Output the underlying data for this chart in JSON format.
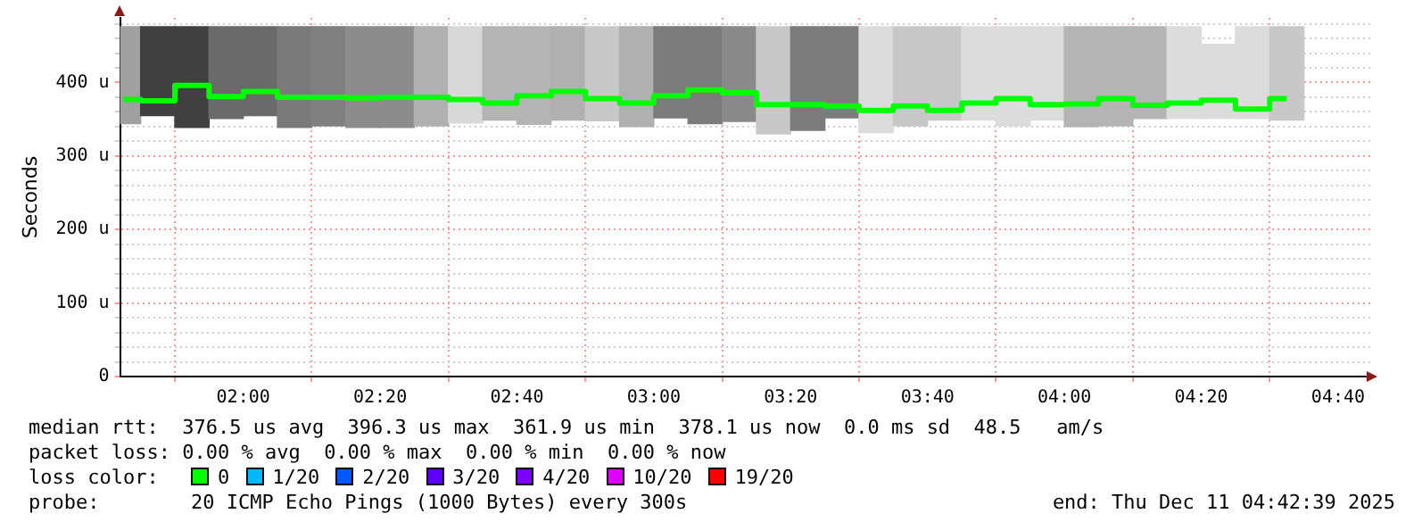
{
  "chart_data": {
    "type": "step",
    "ylabel": "Seconds",
    "x": [
      1.7083,
      1.7917,
      1.875,
      1.9583,
      2.0417,
      2.125,
      2.2083,
      2.2917,
      2.375,
      2.4583,
      2.5417,
      2.625,
      2.7083,
      2.7917,
      2.875,
      2.9583,
      3.0417,
      3.125,
      3.2083,
      3.2917,
      3.375,
      3.4583,
      3.5417,
      3.625,
      3.7083,
      3.7917,
      3.875,
      3.9583,
      4.0417,
      4.125,
      4.2083,
      4.2917,
      4.375,
      4.4583,
      4.5417
    ],
    "series": [
      {
        "type": "bar",
        "colors": [
          "#a0a0a0",
          "#404040",
          "#404040",
          "#6a6a6a",
          "#6a6a6a",
          "#7a7a7a",
          "#808080",
          "#8c8c8c",
          "#8c8c8c",
          "#b0b0b0",
          "#d8d8d8",
          "#b4b4b4",
          "#b4b4b4",
          "#b0b0b0",
          "#c8c8c8",
          "#b0b0b0",
          "#7c7c7c",
          "#7c7c7c",
          "#8a8a8a",
          "#c8c8c8",
          "#7c7c7c",
          "#7c7c7c",
          "#dcdcdc",
          "#c8c8c8",
          "#c8c8c8",
          "#dcdcdc",
          "#dcdcdc",
          "#dcdcdc",
          "#b4b4b4",
          "#b4b4b4",
          "#b4b4b4",
          "#dcdcdc",
          "#dcdcdc",
          "#dcdcdc",
          "#c8c8c8"
        ],
        "base": [
          344,
          355,
          339,
          351,
          355,
          339,
          341,
          339,
          339,
          341,
          345,
          349,
          343,
          349,
          348,
          340,
          352,
          344,
          347,
          330,
          335,
          352,
          332,
          341,
          349,
          349,
          341,
          349,
          340,
          341,
          351,
          351,
          351,
          351,
          349
        ],
        "values": [
          132,
          121,
          137,
          125,
          121,
          137,
          135,
          137,
          137,
          135,
          131,
          127,
          133,
          127,
          128,
          136,
          124,
          132,
          129,
          146,
          141,
          124,
          144,
          135,
          127,
          127,
          135,
          127,
          136,
          135,
          125,
          125,
          101,
          125,
          127
        ]
      },
      {
        "color": "#00ff00",
        "values": [
          377,
          375,
          396,
          381,
          388,
          380,
          380,
          379,
          380,
          380,
          377,
          372,
          382,
          388,
          378,
          372,
          382,
          390,
          386,
          370,
          370,
          368,
          362,
          368,
          362,
          372,
          378,
          370,
          371,
          378,
          369,
          372,
          376,
          364,
          378
        ]
      }
    ],
    "xlim": [
      1.7,
      4.745
    ],
    "xticks": [
      {
        "value": 2,
        "label": "02:00"
      },
      {
        "value": 2.3333,
        "label": "02:20"
      },
      {
        "value": 2.6667,
        "label": "02:40"
      },
      {
        "value": 3,
        "label": "03:00"
      },
      {
        "value": 3.3333,
        "label": "03:20"
      },
      {
        "value": 3.6667,
        "label": "03:40"
      },
      {
        "value": 4,
        "label": "04:00"
      },
      {
        "value": 4.3333,
        "label": "04:20"
      },
      {
        "value": 4.6667,
        "label": "04:40"
      }
    ],
    "ylim": [
      0,
      488
    ],
    "yticks": [
      0,
      {
        "value": 20,
        "label": null
      },
      {
        "value": 40,
        "label": null
      },
      {
        "value": 60,
        "label": null
      },
      {
        "value": 80,
        "label": null
      },
      {
        "value": 100,
        "label": "100 u"
      },
      {
        "value": 120,
        "label": null
      },
      {
        "value": 140,
        "label": null
      },
      {
        "value": 160,
        "label": null
      },
      {
        "value": 180,
        "label": null
      },
      {
        "value": 200,
        "label": "200 u"
      },
      {
        "value": 220,
        "label": null
      },
      {
        "value": 240,
        "label": null
      },
      {
        "value": 260,
        "label": null
      },
      {
        "value": 280,
        "label": null
      },
      {
        "value": 300,
        "label": "300 u"
      },
      {
        "value": 320,
        "label": null
      },
      {
        "value": 340,
        "label": null
      },
      {
        "value": 360,
        "label": null
      },
      {
        "value": 380,
        "label": null
      },
      {
        "value": 400,
        "label": "400 u"
      },
      {
        "value": 420,
        "label": null
      },
      {
        "value": 440,
        "label": null
      },
      {
        "value": 460,
        "label": null
      },
      {
        "value": 480,
        "label": null
      }
    ],
    "grid": true,
    "legend": false,
    "marker": "none",
    "annotations": [
      "median rtt:  376.5 us avg  396.3 us max  361.9 us min  378.1 us now  0.0 ms sd  48.5   am/s",
      "packet loss: 0.00 % avg  0.00 % max  0.00 % min  0.00 % now",
      "loss color:",
      "0",
      "1/20",
      "2/20",
      "3/20",
      "4/20",
      "10/20",
      "19/20",
      "probe:",
      "20 ICMP Echo Pings (1000 Bytes) every 300s",
      "end: Thu Dec 11 04:42:39 2025"
    ]
  }
}
